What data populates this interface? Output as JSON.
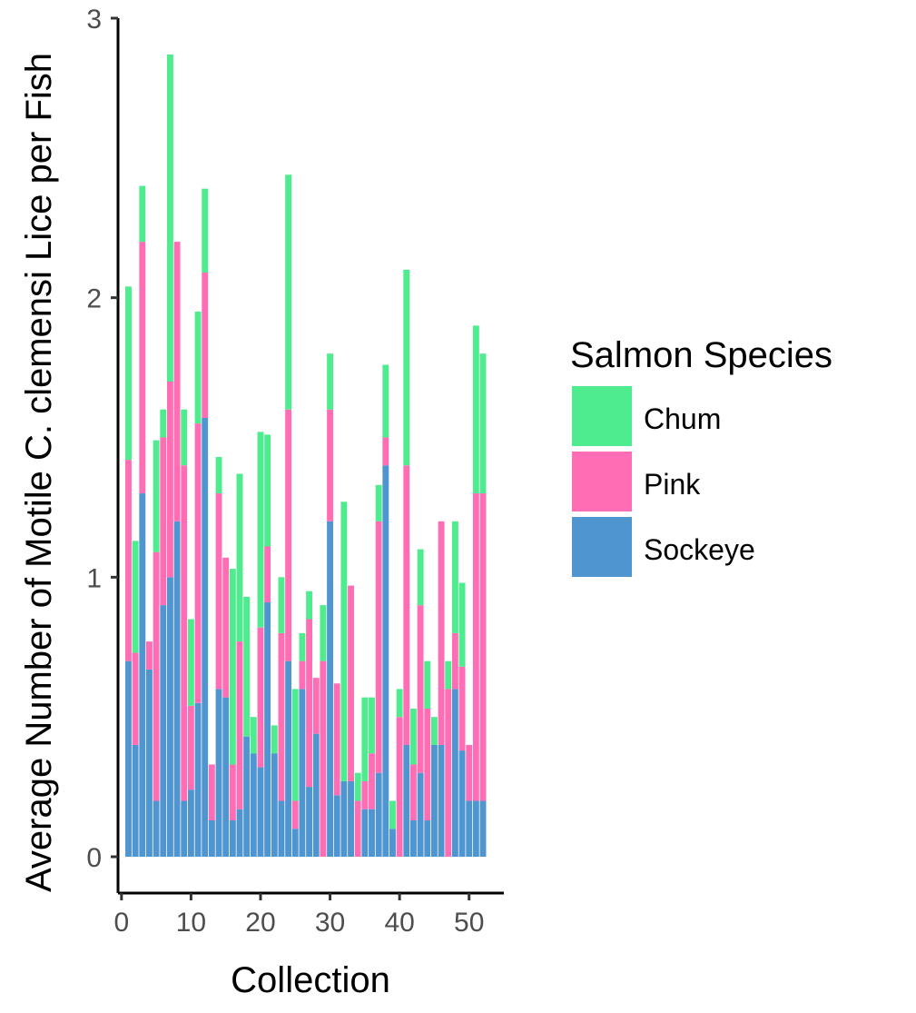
{
  "chart_data": {
    "type": "bar",
    "stacked": true,
    "title": "",
    "xlabel": "Collection",
    "ylabel": "Average Number of Motile C. clemensi Lice per Fish",
    "xlim": [
      -0.5,
      55
    ],
    "ylim": [
      -0.13,
      3
    ],
    "xticks": [
      0,
      10,
      20,
      30,
      40,
      50
    ],
    "yticks": [
      0,
      1,
      2,
      3
    ],
    "grid": false,
    "legend": {
      "title": "Salmon Species",
      "position": "right",
      "items": [
        {
          "name": "Chum",
          "color": "#4EEC8E"
        },
        {
          "name": "Pink",
          "color": "#FF6EB4"
        },
        {
          "name": "Sockeye",
          "color": "#4F95D0"
        }
      ]
    },
    "x": [
      1,
      2,
      3,
      4,
      5,
      6,
      7,
      8,
      9,
      10,
      11,
      12,
      13,
      14,
      15,
      16,
      17,
      18,
      19,
      20,
      21,
      22,
      23,
      24,
      25,
      26,
      27,
      28,
      29,
      30,
      31,
      32,
      33,
      34,
      35,
      36,
      37,
      38,
      39,
      40,
      41,
      42,
      43,
      44,
      45,
      46,
      47,
      48,
      49,
      50,
      51,
      52
    ],
    "series": [
      {
        "name": "Sockeye",
        "color": "#4F95D0",
        "values": [
          0.7,
          0.4,
          1.3,
          0.67,
          0.2,
          0.9,
          1.0,
          1.2,
          0.2,
          0.24,
          0.55,
          1.57,
          0.13,
          0.6,
          0.57,
          0.13,
          0.17,
          0.43,
          0.37,
          0.32,
          0.91,
          0.37,
          0.2,
          0.7,
          0.1,
          0.6,
          0.25,
          0.44,
          0.0,
          1.2,
          0.22,
          0.27,
          0.27,
          0.0,
          0.17,
          0.17,
          0.3,
          1.4,
          0.1,
          0.0,
          0.4,
          0.13,
          0.3,
          0.13,
          0.4,
          0.4,
          0.0,
          0.6,
          0.38,
          0.2,
          0.2,
          0.2
        ]
      },
      {
        "name": "Pink",
        "color": "#FF6EB4",
        "values": [
          0.72,
          0.33,
          0.9,
          0.1,
          0.89,
          0.6,
          0.7,
          1.0,
          1.2,
          0.3,
          1.0,
          0.52,
          0.2,
          0.7,
          0.5,
          0.2,
          0.6,
          0.0,
          0.0,
          0.5,
          0.2,
          0.0,
          0.6,
          0.9,
          0.1,
          0.1,
          0.6,
          0.2,
          0.7,
          0.4,
          0.4,
          0.0,
          0.7,
          0.2,
          0.1,
          0.2,
          0.9,
          0.1,
          0.0,
          0.5,
          1.0,
          0.2,
          0.6,
          0.4,
          0.0,
          0.8,
          0.6,
          0.2,
          0.3,
          0.2,
          1.1,
          1.1
        ]
      },
      {
        "name": "Chum",
        "color": "#4EEC8E",
        "values": [
          0.62,
          0.4,
          0.2,
          0.0,
          0.4,
          0.1,
          1.17,
          0.0,
          0.2,
          0.31,
          0.4,
          0.3,
          0.0,
          0.13,
          0.0,
          0.7,
          0.6,
          0.5,
          0.13,
          0.7,
          0.4,
          0.1,
          0.2,
          0.84,
          0.4,
          0.1,
          0.1,
          0.0,
          0.2,
          0.2,
          0.0,
          1.0,
          0.0,
          0.1,
          0.3,
          0.2,
          0.13,
          0.26,
          0.1,
          0.1,
          0.7,
          0.2,
          0.2,
          0.17,
          0.1,
          0.0,
          0.1,
          0.4,
          0.3,
          0.0,
          0.6,
          0.5
        ]
      }
    ]
  }
}
